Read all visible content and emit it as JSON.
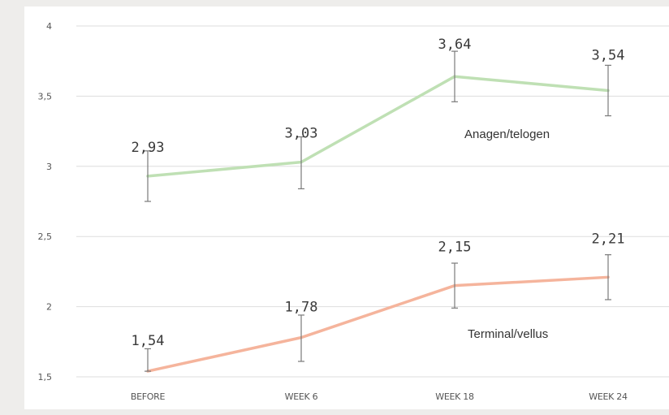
{
  "chart_data": {
    "type": "line",
    "categories": [
      "BEFORE",
      "WEEK 6",
      "WEEK 18",
      "WEEK 24"
    ],
    "y_ticks": [
      "1,5",
      "2",
      "2,5",
      "3",
      "3,5",
      "4"
    ],
    "y_tick_values": [
      1.5,
      2,
      2.5,
      3,
      3.5,
      4
    ],
    "ylim": [
      1.5,
      4
    ],
    "grid": true,
    "series": [
      {
        "name": "Anagen/telogen",
        "values": [
          2.93,
          3.03,
          3.64,
          3.54
        ],
        "labels": [
          "2,93",
          "3,03",
          "3,64",
          "3,54"
        ],
        "error_low": [
          2.75,
          2.84,
          3.46,
          3.36
        ],
        "error_high": [
          3.11,
          3.21,
          3.82,
          3.72
        ],
        "color": "#bfe0b4"
      },
      {
        "name": "Terminal/vellus",
        "values": [
          1.54,
          1.78,
          2.15,
          2.21
        ],
        "labels": [
          "1,54",
          "1,78",
          "2,15",
          "2,21"
        ],
        "error_low": [
          1.54,
          1.61,
          1.99,
          2.05
        ],
        "error_high": [
          1.7,
          1.94,
          2.31,
          2.37
        ],
        "color": "#f5b49c"
      }
    ]
  }
}
